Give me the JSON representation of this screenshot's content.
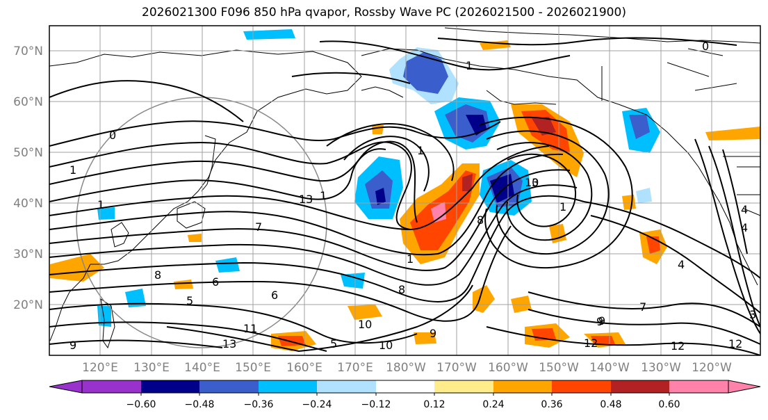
{
  "title": "2026021300 F096 850 hPa qvapor, Rossby Wave PC (2026021500 - 2026021900)",
  "lat_labels": [
    "70°N",
    "60°N",
    "50°N",
    "40°N",
    "30°N",
    "20°N"
  ],
  "lon_labels": [
    "120°E",
    "130°E",
    "140°E",
    "150°E",
    "160°E",
    "170°E",
    "180°W",
    "170°W",
    "160°W",
    "150°W",
    "140°W",
    "130°W",
    "120°W"
  ],
  "colorbar": {
    "colors": [
      "#9932cc",
      "#00008b",
      "#3a5fcd",
      "#00bfff",
      "#b0e2ff",
      "#ffffff",
      "#ffec8b",
      "#ffa500",
      "#ff4500",
      "#b22222",
      "#ff82ab"
    ],
    "tick_labels": [
      "−0.60",
      "−0.48",
      "−0.36",
      "−0.24",
      "−0.12",
      "0.12",
      "0.24",
      "0.36",
      "0.48",
      "0.60"
    ]
  },
  "contour_labels": [
    "1",
    "1",
    "0",
    "0",
    "1",
    "1",
    "3",
    "1",
    "10",
    "1",
    "7",
    "13",
    "1",
    "8",
    "4",
    "6",
    "5",
    "8",
    "6",
    "9",
    "10",
    "11",
    "13",
    "10",
    "9",
    "9",
    "12",
    "12",
    "5",
    "4",
    "4",
    "3",
    "7",
    "8",
    "9",
    "12"
  ]
}
